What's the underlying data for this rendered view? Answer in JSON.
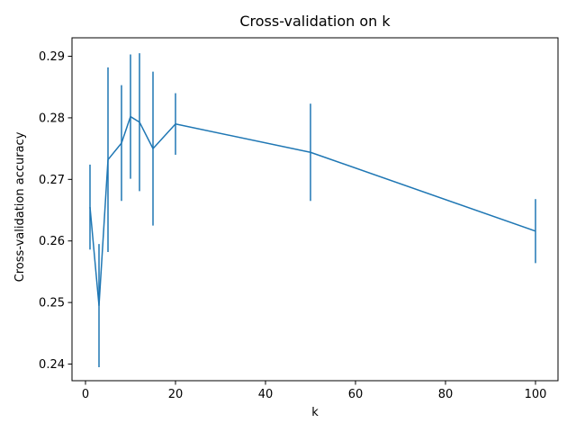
{
  "chart_data": {
    "type": "line",
    "title": "Cross-validation on k",
    "xlabel": "k",
    "ylabel": "Cross-validation accuracy",
    "xlim": [
      -3,
      105
    ],
    "ylim": [
      0.2373,
      0.293
    ],
    "xticks": [
      0,
      20,
      40,
      60,
      80,
      100
    ],
    "xtick_labels": [
      "0",
      "20",
      "40",
      "60",
      "80",
      "100"
    ],
    "yticks": [
      0.24,
      0.25,
      0.26,
      0.27,
      0.28,
      0.29
    ],
    "ytick_labels": [
      "0.24",
      "0.25",
      "0.26",
      "0.27",
      "0.28",
      "0.29"
    ],
    "grid": false,
    "color": "#1f77b4",
    "series": [
      {
        "x": [
          1,
          3,
          5,
          8,
          10,
          12,
          15,
          20,
          50,
          100
        ],
        "y": [
          0.2655,
          0.2495,
          0.2732,
          0.2759,
          0.2802,
          0.2793,
          0.275,
          0.279,
          0.2744,
          0.2616
        ],
        "error": [
          0.0069,
          0.01,
          0.015,
          0.0094,
          0.0101,
          0.0112,
          0.0125,
          0.005,
          0.0079,
          0.0052
        ]
      }
    ]
  }
}
